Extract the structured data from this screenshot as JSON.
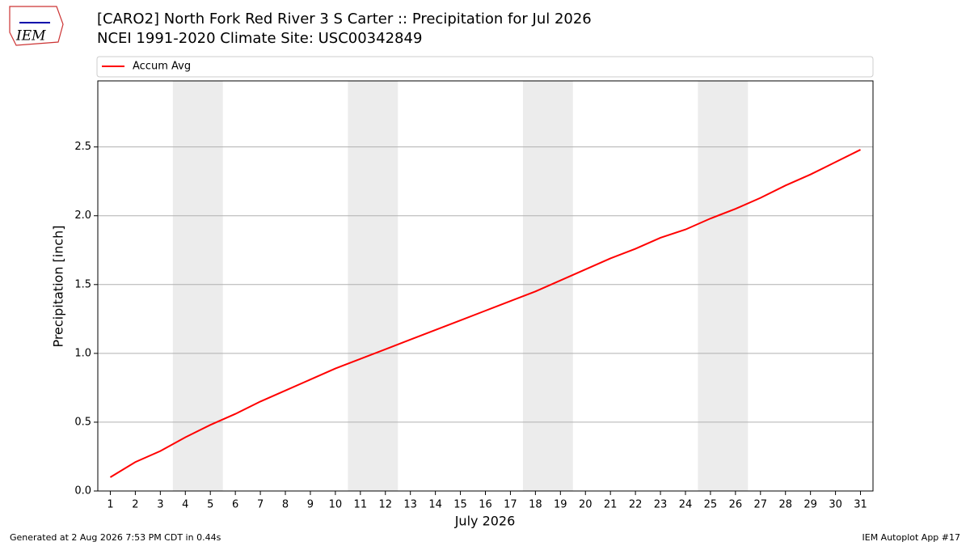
{
  "chart_data": {
    "type": "line",
    "title": "[CARO2] North Fork Red River 3 S Carter :: Precipitation for Jul 2026",
    "subtitle": "NCEI 1991-2020 Climate Site: USC00342849",
    "logo": "IEM",
    "xlabel": "July 2026",
    "ylabel": "Precipitation [inch]",
    "x": [
      1,
      2,
      3,
      4,
      5,
      6,
      7,
      8,
      9,
      10,
      11,
      12,
      13,
      14,
      15,
      16,
      17,
      18,
      19,
      20,
      21,
      22,
      23,
      24,
      25,
      26,
      27,
      28,
      29,
      30,
      31
    ],
    "series": [
      {
        "name": "Accum Avg",
        "color": "#ff0000",
        "values": [
          0.1,
          0.21,
          0.29,
          0.39,
          0.48,
          0.56,
          0.65,
          0.73,
          0.81,
          0.89,
          0.96,
          1.03,
          1.1,
          1.17,
          1.24,
          1.31,
          1.38,
          1.45,
          1.53,
          1.61,
          1.69,
          1.76,
          1.84,
          1.9,
          1.98,
          2.05,
          2.13,
          2.22,
          2.3,
          2.39,
          2.48
        ]
      }
    ],
    "weekend_spans": [
      [
        3.5,
        5.5
      ],
      [
        10.5,
        12.5
      ],
      [
        17.5,
        19.5
      ],
      [
        24.5,
        26.5
      ]
    ],
    "xlim": [
      0.5,
      31.5
    ],
    "xticks": [
      1,
      2,
      3,
      4,
      5,
      6,
      7,
      8,
      9,
      10,
      11,
      12,
      13,
      14,
      15,
      16,
      17,
      18,
      19,
      20,
      21,
      22,
      23,
      24,
      25,
      26,
      27,
      28,
      29,
      30,
      31
    ],
    "ylim": [
      0,
      2.98
    ],
    "yticks": [
      {
        "value": 0,
        "label": "0.0"
      },
      0.5,
      {
        "value": 1,
        "label": "1.0"
      },
      1.5,
      {
        "value": 2,
        "label": "2.0"
      },
      2.5
    ],
    "grid": true,
    "legend_position": "top",
    "footer_left": "Generated at 2 Aug 2026 7:53 PM CDT in 0.44s",
    "footer_right": "IEM Autoplot App #17"
  }
}
